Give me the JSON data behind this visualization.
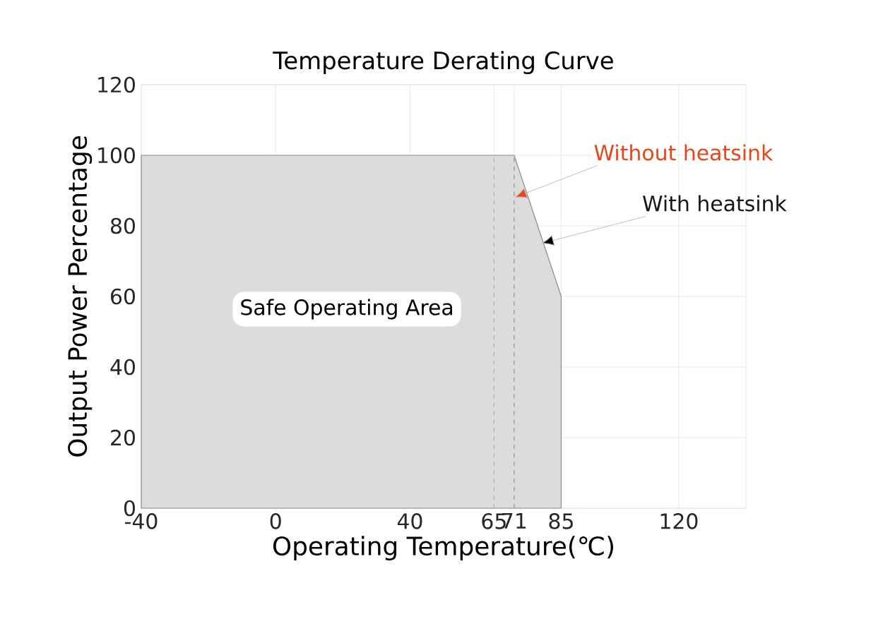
{
  "chart_data": {
    "type": "area",
    "title": "Temperature Derating Curve",
    "xlabel": "Operating Temperature(℃)",
    "ylabel": "Output Power Percentage",
    "x": [
      -40,
      71,
      85,
      85
    ],
    "series": [
      {
        "color": "#dcdcdc",
        "values": [
          100,
          100,
          60,
          0
        ]
      }
    ],
    "xlim": [
      -40,
      140
    ],
    "xticks": [
      -40,
      0,
      40,
      65,
      71,
      85,
      120
    ],
    "ylim": [
      0,
      120
    ],
    "yticks": [
      0,
      20,
      40,
      60,
      80,
      100,
      120
    ],
    "grid": true,
    "ref_lines": [
      {
        "axis": "x",
        "value": 65,
        "color": "#b0b0b0",
        "line_style": "dashed"
      },
      {
        "axis": "x",
        "value": 71,
        "color": "#909090",
        "line_style": "dashed"
      }
    ],
    "annotations": [
      {
        "text": "Without heatsink",
        "x": 71,
        "y": 88
      },
      {
        "text": "With heatsink",
        "x": 79,
        "y": 75
      },
      "Safe Operating Area"
    ]
  }
}
